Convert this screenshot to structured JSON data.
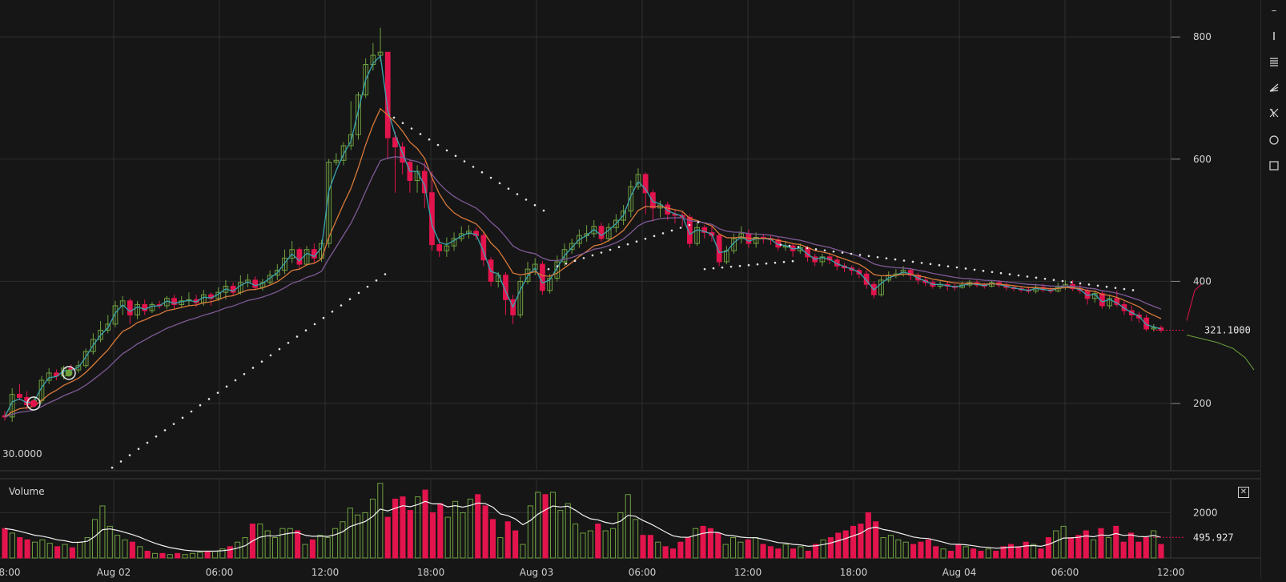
{
  "chart_data": {
    "type": "candlestick",
    "price_axis": {
      "ticks": [
        200,
        400,
        600,
        800
      ],
      "range": [
        90,
        850
      ]
    },
    "x_axis": {
      "ticks": [
        "8:00",
        "Aug 02",
        "06:00",
        "12:00",
        "18:00",
        "Aug 03",
        "06:00",
        "12:00",
        "18:00",
        "Aug 04",
        "06:00",
        "12:00"
      ]
    },
    "last_price_label": "321.1000",
    "left_price_label": "30.0000",
    "candles": [
      [
        180,
        178,
        188,
        172
      ],
      [
        178,
        215,
        225,
        170
      ],
      [
        215,
        210,
        232,
        205
      ],
      [
        210,
        198,
        220,
        190
      ],
      [
        198,
        205,
        212,
        195
      ],
      [
        205,
        238,
        245,
        200
      ],
      [
        238,
        250,
        258,
        232
      ],
      [
        250,
        245,
        256,
        238
      ],
      [
        245,
        258,
        262,
        240
      ],
      [
        258,
        255,
        264,
        250
      ],
      [
        255,
        262,
        270,
        250
      ],
      [
        262,
        285,
        290,
        258
      ],
      [
        285,
        305,
        315,
        280
      ],
      [
        305,
        320,
        335,
        300
      ],
      [
        320,
        330,
        345,
        315
      ],
      [
        330,
        360,
        368,
        325
      ],
      [
        360,
        368,
        376,
        345
      ],
      [
        368,
        345,
        372,
        330
      ],
      [
        345,
        362,
        368,
        338
      ],
      [
        362,
        352,
        370,
        345
      ],
      [
        352,
        362,
        366,
        348
      ],
      [
        362,
        360,
        368,
        355
      ],
      [
        360,
        372,
        376,
        355
      ],
      [
        372,
        362,
        378,
        355
      ],
      [
        362,
        368,
        376,
        358
      ],
      [
        368,
        370,
        382,
        360
      ],
      [
        370,
        365,
        378,
        358
      ],
      [
        365,
        378,
        386,
        360
      ],
      [
        378,
        372,
        382,
        360
      ],
      [
        372,
        382,
        390,
        368
      ],
      [
        382,
        392,
        402,
        370
      ],
      [
        392,
        382,
        398,
        376
      ],
      [
        382,
        398,
        410,
        378
      ],
      [
        398,
        402,
        412,
        390
      ],
      [
        402,
        390,
        408,
        385
      ],
      [
        390,
        398,
        404,
        385
      ],
      [
        398,
        410,
        418,
        395
      ],
      [
        410,
        418,
        428,
        402
      ],
      [
        418,
        438,
        452,
        412
      ],
      [
        438,
        452,
        466,
        430
      ],
      [
        452,
        428,
        456,
        420
      ],
      [
        428,
        452,
        458,
        425
      ],
      [
        452,
        438,
        462,
        430
      ],
      [
        438,
        462,
        468,
        432
      ],
      [
        462,
        595,
        600,
        455
      ],
      [
        595,
        598,
        610,
        590
      ],
      [
        598,
        622,
        628,
        590
      ],
      [
        622,
        640,
        695,
        615
      ],
      [
        640,
        705,
        710,
        632
      ],
      [
        705,
        755,
        765,
        700
      ],
      [
        755,
        770,
        790,
        745
      ],
      [
        770,
        775,
        815,
        760
      ],
      [
        775,
        635,
        772,
        600
      ],
      [
        635,
        620,
        645,
        545
      ],
      [
        620,
        595,
        628,
        575
      ],
      [
        595,
        565,
        600,
        545
      ],
      [
        565,
        580,
        590,
        545
      ],
      [
        580,
        545,
        595,
        520
      ],
      [
        545,
        460,
        580,
        450
      ],
      [
        460,
        450,
        470,
        440
      ],
      [
        450,
        458,
        472,
        440
      ],
      [
        458,
        470,
        480,
        450
      ],
      [
        470,
        478,
        490,
        465
      ],
      [
        478,
        482,
        492,
        470
      ],
      [
        482,
        475,
        488,
        468
      ],
      [
        475,
        435,
        480,
        425
      ],
      [
        435,
        400,
        440,
        392
      ],
      [
        400,
        410,
        415,
        390
      ],
      [
        410,
        370,
        415,
        345
      ],
      [
        370,
        345,
        378,
        330
      ],
      [
        345,
        400,
        408,
        340
      ],
      [
        400,
        420,
        432,
        395
      ],
      [
        420,
        428,
        438,
        410
      ],
      [
        428,
        385,
        433,
        378
      ],
      [
        385,
        405,
        412,
        380
      ],
      [
        405,
        432,
        442,
        400
      ],
      [
        432,
        452,
        462,
        425
      ],
      [
        452,
        462,
        470,
        445
      ],
      [
        462,
        475,
        485,
        455
      ],
      [
        475,
        478,
        492,
        465
      ],
      [
        478,
        490,
        500,
        472
      ],
      [
        490,
        470,
        496,
        465
      ],
      [
        470,
        488,
        495,
        465
      ],
      [
        488,
        500,
        510,
        480
      ],
      [
        500,
        515,
        525,
        492
      ],
      [
        515,
        555,
        565,
        505
      ],
      [
        555,
        575,
        585,
        550
      ],
      [
        575,
        545,
        578,
        510
      ],
      [
        545,
        520,
        550,
        498
      ],
      [
        520,
        525,
        532,
        505
      ],
      [
        525,
        510,
        530,
        500
      ],
      [
        510,
        508,
        518,
        495
      ],
      [
        508,
        505,
        515,
        490
      ],
      [
        505,
        462,
        510,
        455
      ],
      [
        462,
        488,
        495,
        458
      ],
      [
        488,
        480,
        492,
        470
      ],
      [
        480,
        475,
        490,
        465
      ],
      [
        475,
        432,
        478,
        425
      ],
      [
        432,
        450,
        458,
        428
      ],
      [
        450,
        470,
        478,
        445
      ],
      [
        470,
        478,
        490,
        462
      ],
      [
        478,
        462,
        485,
        455
      ],
      [
        462,
        472,
        480,
        455
      ],
      [
        472,
        470,
        478,
        462
      ],
      [
        470,
        468,
        476,
        460
      ],
      [
        468,
        456,
        472,
        450
      ],
      [
        456,
        458,
        466,
        450
      ],
      [
        458,
        450,
        462,
        440
      ],
      [
        450,
        455,
        462,
        445
      ],
      [
        455,
        440,
        458,
        432
      ],
      [
        440,
        432,
        445,
        425
      ],
      [
        432,
        440,
        445,
        425
      ],
      [
        440,
        435,
        445,
        428
      ],
      [
        435,
        425,
        440,
        418
      ],
      [
        425,
        422,
        430,
        415
      ],
      [
        422,
        418,
        426,
        410
      ],
      [
        418,
        412,
        422,
        405
      ],
      [
        412,
        395,
        418,
        388
      ],
      [
        395,
        378,
        400,
        372
      ],
      [
        378,
        402,
        408,
        375
      ],
      [
        402,
        410,
        416,
        398
      ],
      [
        410,
        412,
        420,
        405
      ],
      [
        412,
        418,
        425,
        408
      ],
      [
        418,
        410,
        422,
        402
      ],
      [
        410,
        402,
        414,
        395
      ],
      [
        402,
        398,
        408,
        392
      ],
      [
        398,
        392,
        402,
        388
      ],
      [
        392,
        395,
        400,
        388
      ],
      [
        395,
        392,
        400,
        385
      ],
      [
        392,
        390,
        396,
        385
      ],
      [
        390,
        394,
        400,
        388
      ],
      [
        394,
        398,
        402,
        390
      ],
      [
        398,
        394,
        402,
        390
      ],
      [
        394,
        392,
        398,
        388
      ],
      [
        392,
        398,
        402,
        390
      ],
      [
        398,
        394,
        402,
        390
      ],
      [
        394,
        390,
        398,
        385
      ],
      [
        390,
        388,
        394,
        384
      ],
      [
        388,
        386,
        392,
        382
      ],
      [
        386,
        384,
        392,
        380
      ],
      [
        384,
        390,
        396,
        380
      ],
      [
        390,
        386,
        396,
        382
      ],
      [
        386,
        384,
        390,
        380
      ],
      [
        384,
        390,
        398,
        382
      ],
      [
        390,
        395,
        402,
        386
      ],
      [
        395,
        388,
        402,
        384
      ],
      [
        388,
        385,
        395,
        380
      ],
      [
        385,
        372,
        388,
        362
      ],
      [
        372,
        380,
        385,
        365
      ],
      [
        380,
        360,
        384,
        355
      ],
      [
        360,
        372,
        378,
        355
      ],
      [
        372,
        362,
        385,
        358
      ],
      [
        362,
        352,
        368,
        345
      ],
      [
        352,
        345,
        360,
        335
      ],
      [
        345,
        340,
        350,
        332
      ],
      [
        340,
        322,
        346,
        318
      ],
      [
        322,
        324,
        330,
        318
      ],
      [
        324,
        320,
        328,
        316
      ]
    ],
    "volume_axis": {
      "ticks": [
        2000
      ],
      "last_label": "495.927",
      "label": "Volume"
    },
    "volume": [
      1300,
      1100,
      900,
      800,
      700,
      800,
      650,
      500,
      600,
      450,
      700,
      900,
      1700,
      2300,
      1400,
      1000,
      800,
      700,
      500,
      300,
      200,
      200,
      150,
      200,
      150,
      200,
      250,
      300,
      300,
      400,
      500,
      700,
      900,
      1500,
      1500,
      1200,
      900,
      1300,
      1300,
      1200,
      600,
      800,
      1000,
      900,
      1300,
      1600,
      2200,
      1900,
      2000,
      2600,
      3300,
      1800,
      2600,
      2700,
      2100,
      2700,
      3000,
      2000,
      2400,
      1800,
      2500,
      2000,
      2600,
      2800,
      2300,
      1700,
      900,
      1600,
      1200,
      600,
      2300,
      2900,
      2800,
      2900,
      2100,
      2400,
      1500,
      1100,
      1200,
      1500,
      1200,
      1300,
      2000,
      2800,
      1700,
      1000,
      1000,
      700,
      500,
      400,
      700,
      900,
      1300,
      1400,
      1300,
      1100,
      600,
      900,
      700,
      800,
      900,
      600,
      500,
      400,
      600,
      400,
      500,
      300,
      600,
      800,
      900,
      1100,
      1200,
      1400,
      1500,
      2000,
      1600,
      900,
      1000,
      800,
      700,
      600,
      700,
      800,
      500,
      400,
      300,
      600,
      500,
      400,
      300,
      400,
      300,
      500,
      600,
      500,
      700,
      600,
      400,
      900,
      1200,
      1400,
      900,
      1000,
      1200,
      800,
      1300,
      900,
      1400,
      700,
      1100,
      700,
      900,
      1200,
      600
    ]
  },
  "price_panel": {
    "ylim": [
      90,
      850
    ]
  },
  "volume_panel": {
    "ylim": [
      0,
      3500
    ]
  }
}
